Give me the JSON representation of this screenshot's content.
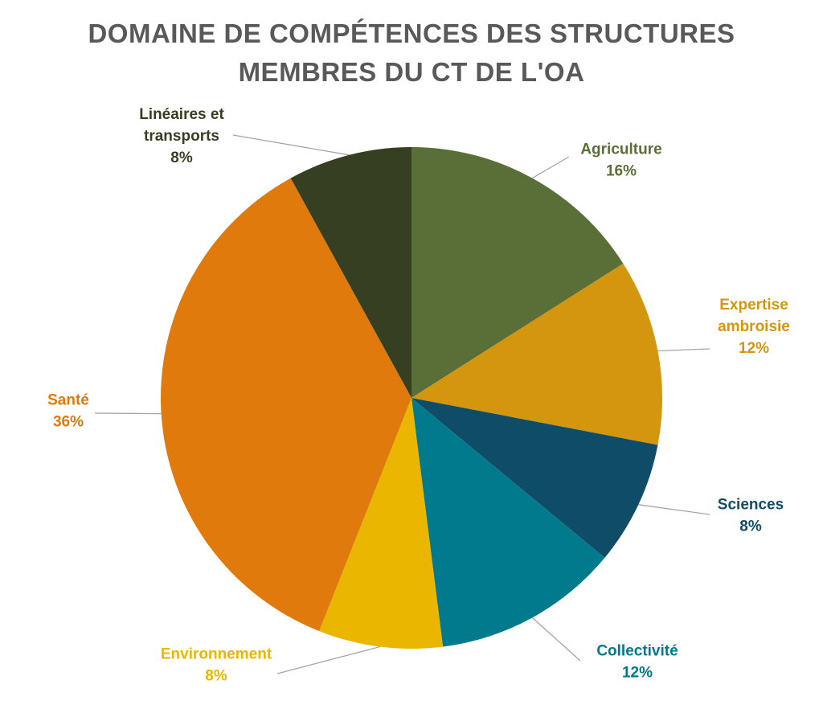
{
  "chart_data": {
    "type": "pie",
    "title": "DOMAINE DE COMPÉTENCES DES STRUCTURES MEMBRES DU CT DE L'OA",
    "title_lines": [
      "DOMAINE DE COMPÉTENCES DES STRUCTURES",
      "MEMBRES DU CT DE L'OA"
    ],
    "start_angle_deg": 0,
    "direction": "clockwise",
    "legend": "none",
    "slices": [
      {
        "label": "Agriculture",
        "label_lines": [
          "Agriculture"
        ],
        "value": 16,
        "value_label": "16%",
        "color": "#5A6E37",
        "label_color": "#5A6E37"
      },
      {
        "label": "Expertise ambroisie",
        "label_lines": [
          "Expertise",
          "ambroisie"
        ],
        "value": 12,
        "value_label": "12%",
        "color": "#D4960E",
        "label_color": "#D4960E"
      },
      {
        "label": "Sciences",
        "label_lines": [
          "Sciences"
        ],
        "value": 8,
        "value_label": "8%",
        "color": "#0F4C68",
        "label_color": "#0F4C68"
      },
      {
        "label": "Collectivité",
        "label_lines": [
          "Collectivité"
        ],
        "value": 12,
        "value_label": "12%",
        "color": "#007A8C",
        "label_color": "#007A8C"
      },
      {
        "label": "Environnement",
        "label_lines": [
          "Environnement"
        ],
        "value": 8,
        "value_label": "8%",
        "color": "#EAB600",
        "label_color": "#EAB600"
      },
      {
        "label": "Santé",
        "label_lines": [
          "Santé"
        ],
        "value": 36,
        "value_label": "36%",
        "color": "#E07A0C",
        "label_color": "#E07A0C"
      },
      {
        "label": "Linéaires et transports",
        "label_lines": [
          "Linéaires et",
          "transports"
        ],
        "value": 8,
        "value_label": "8%",
        "color": "#363F22",
        "label_color": "#363F22"
      }
    ]
  }
}
